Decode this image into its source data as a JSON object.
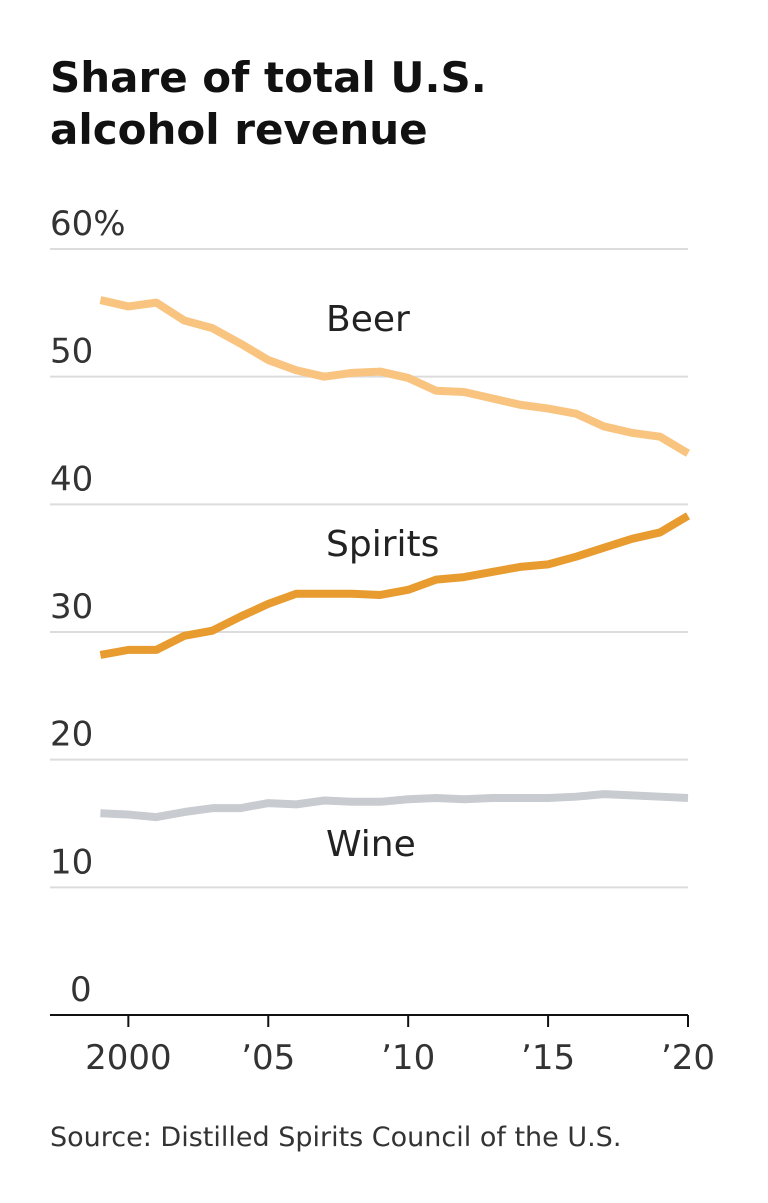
{
  "chart_data": {
    "type": "line",
    "title": "Share of total U.S. alcohol revenue",
    "source": "Source: Distilled Spirits Council of the U.S.",
    "x": [
      1999,
      2000,
      2001,
      2002,
      2003,
      2004,
      2005,
      2006,
      2007,
      2008,
      2009,
      2010,
      2011,
      2012,
      2013,
      2014,
      2015,
      2016,
      2017,
      2018,
      2019,
      2020
    ],
    "series": [
      {
        "name": "Beer",
        "color": "#f9c47f",
        "values": [
          56.0,
          55.5,
          55.8,
          54.4,
          53.8,
          52.6,
          51.3,
          50.5,
          50.0,
          50.3,
          50.4,
          49.9,
          48.9,
          48.8,
          48.3,
          47.8,
          47.5,
          47.1,
          46.1,
          45.6,
          45.3,
          44.0
        ]
      },
      {
        "name": "Spirits",
        "color": "#e89b2f",
        "values": [
          28.2,
          28.6,
          28.6,
          29.7,
          30.1,
          31.2,
          32.2,
          33.0,
          33.0,
          33.0,
          32.9,
          33.3,
          34.1,
          34.3,
          34.7,
          35.1,
          35.3,
          35.9,
          36.6,
          37.3,
          37.8,
          39.1
        ]
      },
      {
        "name": "Wine",
        "color": "#c8ccd0",
        "values": [
          15.8,
          15.7,
          15.5,
          15.9,
          16.2,
          16.2,
          16.6,
          16.5,
          16.8,
          16.7,
          16.7,
          16.9,
          17.0,
          16.9,
          17.0,
          17.0,
          17.0,
          17.1,
          17.3,
          17.2,
          17.1,
          17.0
        ]
      }
    ],
    "xlim": [
      1997.2,
      2020
    ],
    "xticks": [
      2000,
      {
        "value": 2005,
        "label": "’05"
      },
      {
        "value": 2010,
        "label": "’10"
      },
      {
        "value": 2015,
        "label": "’15"
      },
      {
        "value": 2020,
        "label": "’20"
      }
    ],
    "ylim": [
      0,
      60
    ],
    "yticks": [
      0,
      10,
      20,
      30,
      40,
      50,
      {
        "value": 60,
        "label": "60%"
      }
    ],
    "grid": true
  }
}
